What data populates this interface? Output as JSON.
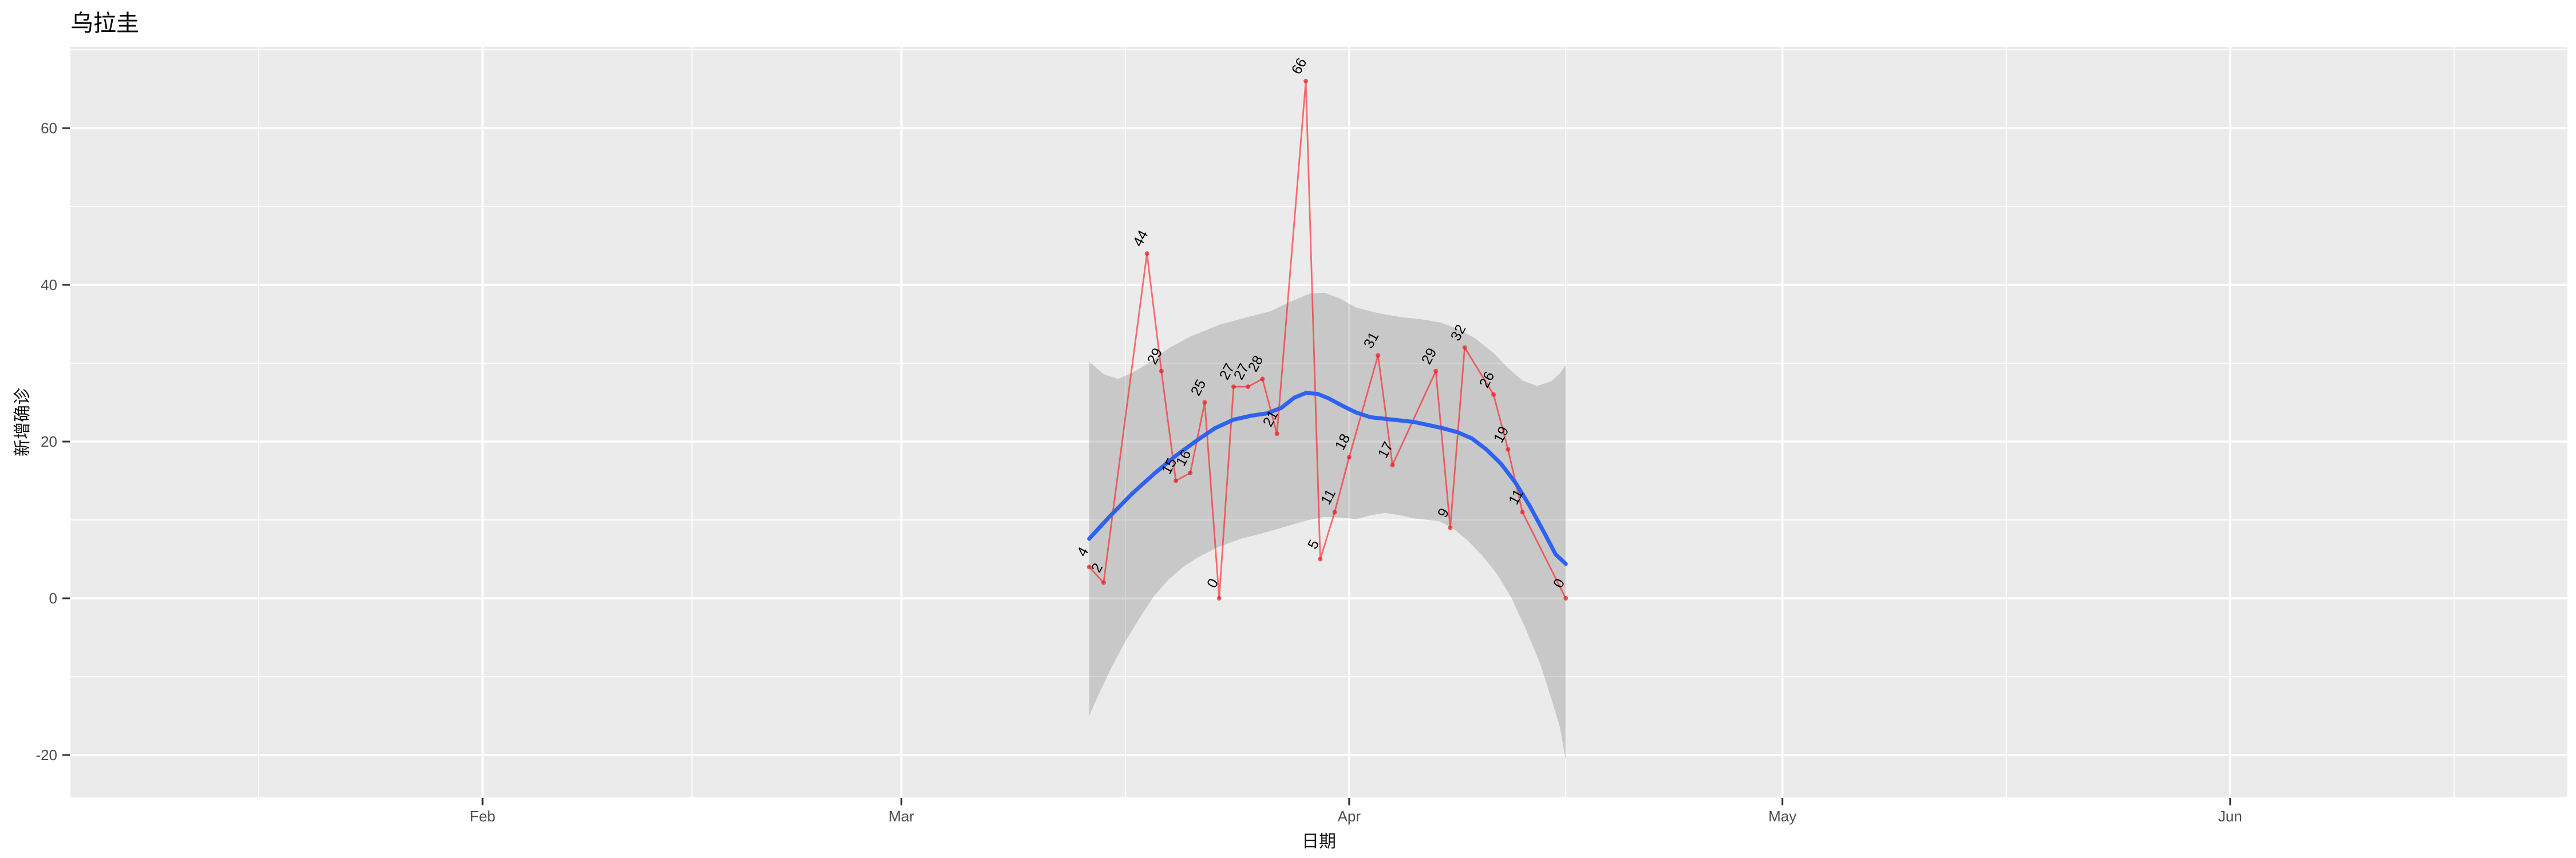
{
  "title": "乌拉圭",
  "x_axis": {
    "label": "日期",
    "tick_labels": [
      "Feb",
      "Mar",
      "Apr",
      "May",
      "Jun"
    ]
  },
  "y_axis": {
    "label": "新增确诊",
    "tick_labels": [
      "60",
      "40",
      "20",
      "0",
      "-20"
    ]
  },
  "colors": {
    "panel_bg": "#EBEBEB",
    "grid": "#FFFFFF",
    "band_fill": "rgba(128,128,128,0.32)",
    "red_line": "rgba(255,20,25,0.60)",
    "dot_fill": "rgba(242,15,20,0.65)",
    "smooth_blue": "#2E62F1",
    "tick_text": "#4D4D4D",
    "tick_mark": "#333333",
    "label_text": "#000000"
  },
  "chart_data": {
    "type": "line",
    "title": "乌拉圭",
    "xlabel": "日期",
    "ylabel": "新增确诊",
    "x_tick_months": [
      {
        "label": "Feb",
        "doy": 32
      },
      {
        "label": "Mar",
        "doy": 61
      },
      {
        "label": "Apr",
        "doy": 92
      },
      {
        "label": "May",
        "doy": 122
      },
      {
        "label": "Jun",
        "doy": 153
      }
    ],
    "x_minor_doy": [
      16.5,
      46.5,
      76.5,
      107,
      137.5,
      168.5
    ],
    "y_major_ticks": [
      60,
      40,
      20,
      0,
      -20
    ],
    "y_minor_ticks": [
      70,
      50,
      30,
      10,
      -10
    ],
    "ylim_panel": [
      -25.4,
      70.4
    ],
    "grid": true,
    "legend": "none",
    "series": [
      {
        "name": "daily-new-cases",
        "style": "red line with points and rotated value labels",
        "points": [
          {
            "date": "2020-03-14",
            "value": 4
          },
          {
            "date": "2020-03-15",
            "value": 2
          },
          {
            "date": "2020-03-18",
            "value": 44
          },
          {
            "date": "2020-03-19",
            "value": 29
          },
          {
            "date": "2020-03-20",
            "value": 15
          },
          {
            "date": "2020-03-21",
            "value": 16
          },
          {
            "date": "2020-03-22",
            "value": 25
          },
          {
            "date": "2020-03-23",
            "value": 0
          },
          {
            "date": "2020-03-24",
            "value": 27
          },
          {
            "date": "2020-03-25",
            "value": 27
          },
          {
            "date": "2020-03-26",
            "value": 28
          },
          {
            "date": "2020-03-27",
            "value": 21
          },
          {
            "date": "2020-03-29",
            "value": 66
          },
          {
            "date": "2020-03-30",
            "value": 5
          },
          {
            "date": "2020-03-31",
            "value": 11
          },
          {
            "date": "2020-04-01",
            "value": 18
          },
          {
            "date": "2020-04-03",
            "value": 31
          },
          {
            "date": "2020-04-04",
            "value": 17
          },
          {
            "date": "2020-04-07",
            "value": 29
          },
          {
            "date": "2020-04-08",
            "value": 9
          },
          {
            "date": "2020-04-09",
            "value": 32
          },
          {
            "date": "2020-04-11",
            "value": 26
          },
          {
            "date": "2020-04-12",
            "value": 19
          },
          {
            "date": "2020-04-13",
            "value": 11
          },
          {
            "date": "2020-04-16",
            "value": 0
          }
        ]
      },
      {
        "name": "loess-smooth",
        "style": "blue smooth line",
        "points_doy": [
          [
            74,
            7.6
          ],
          [
            75.5,
            10.6
          ],
          [
            77,
            13.4
          ],
          [
            78.5,
            15.9
          ],
          [
            80,
            18.2
          ],
          [
            81.5,
            20.2
          ],
          [
            82.7,
            21.7
          ],
          [
            84,
            22.8
          ],
          [
            85.2,
            23.3
          ],
          [
            86.3,
            23.6
          ],
          [
            87.3,
            24.3
          ],
          [
            88.2,
            25.6
          ],
          [
            89,
            26.2
          ],
          [
            89.8,
            26.1
          ],
          [
            90.6,
            25.5
          ],
          [
            91.5,
            24.6
          ],
          [
            92.5,
            23.7
          ],
          [
            93.5,
            23.1
          ],
          [
            94.5,
            22.9
          ],
          [
            95.5,
            22.7
          ],
          [
            96.5,
            22.5
          ],
          [
            97.5,
            22.1
          ],
          [
            98.5,
            21.7
          ],
          [
            99.5,
            21.2
          ],
          [
            100.5,
            20.4
          ],
          [
            101.5,
            19.0
          ],
          [
            102.5,
            17.2
          ],
          [
            103.5,
            14.8
          ],
          [
            104.5,
            11.8
          ],
          [
            105.5,
            8.4
          ],
          [
            106.3,
            5.6
          ],
          [
            107,
            4.4
          ]
        ]
      },
      {
        "name": "confidence-band",
        "style": "gray ribbon around smooth line",
        "upper_doy": [
          [
            74,
            30.2
          ],
          [
            75,
            28.6
          ],
          [
            76,
            28.0
          ],
          [
            77,
            28.8
          ],
          [
            78,
            29.9
          ],
          [
            79.5,
            31.9
          ],
          [
            81,
            33.4
          ],
          [
            83,
            34.9
          ],
          [
            85,
            35.9
          ],
          [
            86.5,
            36.6
          ],
          [
            88,
            37.9
          ],
          [
            89.3,
            38.9
          ],
          [
            90.3,
            39.0
          ],
          [
            91.3,
            38.3
          ],
          [
            92.5,
            37.1
          ],
          [
            94,
            36.4
          ],
          [
            95.5,
            35.9
          ],
          [
            97,
            35.6
          ],
          [
            98.3,
            35.2
          ],
          [
            99.5,
            34.4
          ],
          [
            100.7,
            33.2
          ],
          [
            102,
            31.3
          ],
          [
            103,
            29.4
          ],
          [
            104,
            27.8
          ],
          [
            105,
            27.1
          ],
          [
            106,
            27.7
          ],
          [
            106.6,
            28.7
          ],
          [
            107,
            29.8
          ]
        ],
        "lower_doy": [
          [
            74,
            -15
          ],
          [
            74.6,
            -12.5
          ],
          [
            75.5,
            -9
          ],
          [
            76.5,
            -5.5
          ],
          [
            77.5,
            -2.5
          ],
          [
            78.5,
            0.3
          ],
          [
            79.5,
            2.4
          ],
          [
            80.5,
            4.0
          ],
          [
            81.5,
            5.2
          ],
          [
            83,
            6.6
          ],
          [
            84.5,
            7.6
          ],
          [
            86,
            8.3
          ],
          [
            87.5,
            9.1
          ],
          [
            89,
            9.9
          ],
          [
            90.3,
            10.4
          ],
          [
            91.5,
            10.3
          ],
          [
            92.5,
            10.1
          ],
          [
            93.5,
            10.6
          ],
          [
            94.5,
            10.9
          ],
          [
            95.5,
            10.6
          ],
          [
            96.5,
            10.2
          ],
          [
            97.5,
            10.0
          ],
          [
            98.3,
            9.8
          ],
          [
            99.2,
            8.9
          ],
          [
            100.2,
            7.4
          ],
          [
            101.2,
            5.5
          ],
          [
            102.2,
            3.2
          ],
          [
            103.2,
            0.2
          ],
          [
            104.2,
            -3.8
          ],
          [
            105.2,
            -8.2
          ],
          [
            106,
            -12.8
          ],
          [
            106.6,
            -16.5
          ],
          [
            107,
            -20.7
          ]
        ]
      }
    ]
  }
}
